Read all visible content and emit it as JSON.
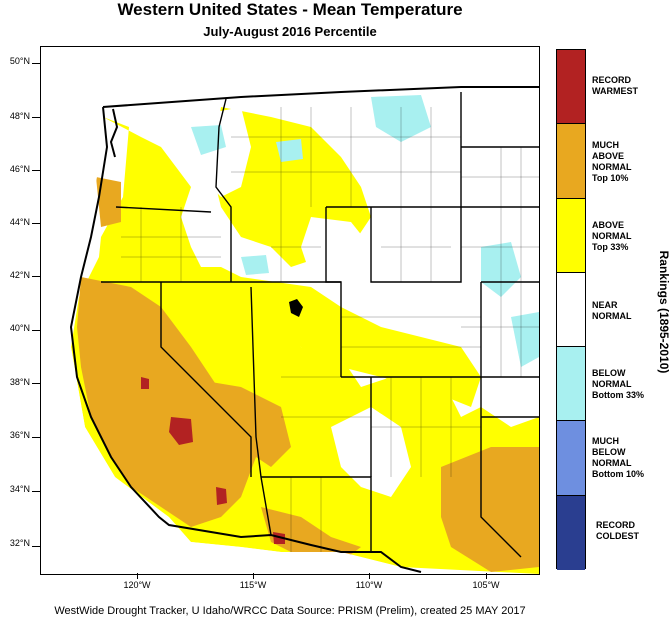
{
  "header": {
    "title": "Western United States - Mean Temperature",
    "subtitle": "July-August 2016 Percentile"
  },
  "map": {
    "lat_labels": [
      "50°N",
      "48°N",
      "46°N",
      "44°N",
      "42°N",
      "40°N",
      "38°N",
      "36°N",
      "34°N",
      "32°N"
    ],
    "lon_labels": [
      "120°W",
      "115°W",
      "110°W",
      "105°W"
    ]
  },
  "legend": {
    "title": "Rankings (1895-2010)",
    "categories": [
      {
        "label": [
          "RECORD",
          "WARMEST"
        ],
        "color": "#b22222"
      },
      {
        "label": [
          "MUCH",
          "ABOVE",
          "NORMAL",
          "Top 10%"
        ],
        "color": "#e8a820"
      },
      {
        "label": [
          "ABOVE",
          "NORMAL",
          "Top 33%"
        ],
        "color": "#ffff00"
      },
      {
        "label": [
          "NEAR",
          "NORMAL"
        ],
        "color": "#ffffff"
      },
      {
        "label": [
          "BELOW",
          "NORMAL",
          "Bottom 33%"
        ],
        "color": "#a8f0f0"
      },
      {
        "label": [
          "MUCH",
          "BELOW",
          "NORMAL",
          "Bottom 10%"
        ],
        "color": "#6e8fe0"
      },
      {
        "label": [
          "RECORD",
          "COLDEST"
        ],
        "color": "#2a3e90"
      }
    ]
  },
  "footer": {
    "credit": "WestWide Drought Tracker, U Idaho/WRCC Data Source: PRISM (Prelim), created 25 MAY 2017"
  }
}
